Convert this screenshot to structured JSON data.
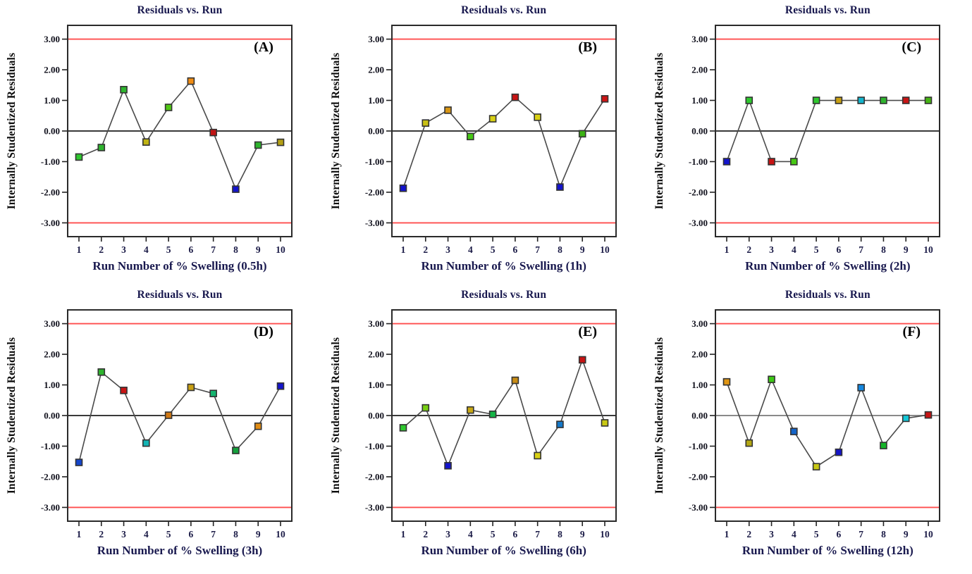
{
  "figure": {
    "background": "#ffffff",
    "frame_color": "#2a2a2a",
    "line_color": "#4a4a4a",
    "marker_outline": "#333333",
    "limit_line_color": "#ff4d4d",
    "zero_line_color": "#3a3a3a",
    "title_color": "#18184e",
    "tick_color": "#1a1a46"
  },
  "chart_data": {
    "type": "line",
    "title": "Residuals vs. Run",
    "ylabel": "Internally Studentized Residuals",
    "x": [
      "1",
      "2",
      "3",
      "4",
      "5",
      "6",
      "7",
      "8",
      "9",
      "10"
    ],
    "ylim": [
      -3.45,
      3.45
    ],
    "yticks": [
      3.0,
      2.0,
      1.0,
      0.0,
      -1.0,
      -2.0,
      -3.0
    ],
    "ytick_labels": [
      "3.00",
      "2.00",
      "1.00",
      "0.00",
      "-1.00",
      "-2.00",
      "-3.00"
    ],
    "limit_lines": [
      3.0,
      -3.0
    ],
    "grid": false,
    "legend": "none",
    "charts": [
      {
        "panel": "(A)",
        "xlabel": "Run Number of % Swelling (0.5h)",
        "values": [
          -0.85,
          -0.54,
          1.35,
          -0.36,
          0.77,
          1.63,
          -0.05,
          -1.9,
          -0.46,
          -0.37
        ],
        "colors": [
          "#2ec82e",
          "#2eb42e",
          "#2eb42e",
          "#c0b414",
          "#50c814",
          "#f08c14",
          "#c01414",
          "#1414cc",
          "#2eb42e",
          "#b4a014"
        ],
        "zero_line_color": "#3a3a3a"
      },
      {
        "panel": "(B)",
        "xlabel": "Run Number of % Swelling (1h)",
        "values": [
          -1.87,
          0.26,
          0.68,
          -0.18,
          0.4,
          1.1,
          0.45,
          -1.83,
          -0.09,
          1.05
        ],
        "colors": [
          "#1414cc",
          "#c8c014",
          "#d89614",
          "#46c814",
          "#d8d014",
          "#c81414",
          "#d8d014",
          "#1414cc",
          "#3cb414",
          "#cc1414"
        ],
        "zero_line_color": "#3a3a3a"
      },
      {
        "panel": "(C)",
        "xlabel": "Run Number of % Swelling (2h)",
        "values": [
          -1.0,
          1.0,
          -1.0,
          -1.0,
          1.0,
          1.0,
          1.0,
          1.0,
          1.0,
          1.0
        ],
        "colors": [
          "#1414cc",
          "#2ec82e",
          "#c81414",
          "#46c814",
          "#2ec82e",
          "#c8a014",
          "#14b4cc",
          "#2eb42e",
          "#c81414",
          "#46b414"
        ],
        "zero_line_color": "#3a3a3a"
      },
      {
        "panel": "(D)",
        "xlabel": "Run Number of % Swelling (3h)",
        "values": [
          -1.53,
          1.42,
          0.82,
          -0.9,
          0.01,
          0.92,
          0.72,
          -1.14,
          -0.35,
          0.96
        ],
        "colors": [
          "#1446cc",
          "#2eb42e",
          "#c81414",
          "#14b4b4",
          "#d07814",
          "#c8a014",
          "#14b46e",
          "#14a03c",
          "#e08c14",
          "#1414cc"
        ],
        "zero_line_color": "#3a3a3a"
      },
      {
        "panel": "(E)",
        "xlabel": "Run Number of % Swelling (6h)",
        "values": [
          -0.4,
          0.25,
          -1.64,
          0.18,
          0.04,
          1.15,
          -1.31,
          -0.29,
          1.82,
          -0.24
        ],
        "colors": [
          "#2ec82e",
          "#78d014",
          "#1414cc",
          "#c8a814",
          "#14b446",
          "#c88c14",
          "#d8d014",
          "#1478c8",
          "#c81414",
          "#c8c814"
        ],
        "zero_line_color": "#3a3a3a"
      },
      {
        "panel": "(F)",
        "xlabel": "Run Number of % Swelling (12h)",
        "values": [
          1.1,
          -0.9,
          1.18,
          -0.52,
          -1.67,
          -1.2,
          0.91,
          -0.98,
          -0.09,
          0.02
        ],
        "colors": [
          "#e09614",
          "#b4a814",
          "#3cc814",
          "#1464c8",
          "#c8c814",
          "#1414c8",
          "#1487e0",
          "#14b428",
          "#14c8d8",
          "#c81414"
        ],
        "zero_line_color": "#8a8a8a"
      }
    ]
  }
}
